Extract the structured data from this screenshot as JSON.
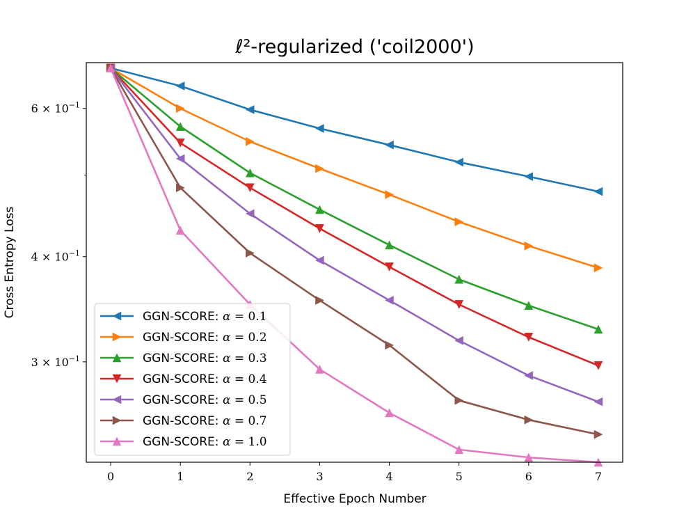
{
  "chart_data": {
    "type": "line",
    "title": "ℓ²-regularized ('coil2000')",
    "xlabel": "Effective Epoch Number",
    "ylabel": "Cross Entropy Loss",
    "yscale": "log",
    "xlim": [
      -0.35,
      7.35
    ],
    "ylim": [
      0.228,
      0.68
    ],
    "xticks": [
      0,
      1,
      2,
      3,
      4,
      5,
      6,
      7
    ],
    "yticks": [
      {
        "value": 0.6,
        "mantissa": "6",
        "exponent": "−1"
      },
      {
        "value": 0.4,
        "mantissa": "4",
        "exponent": "−1"
      },
      {
        "value": 0.3,
        "mantissa": "3",
        "exponent": "−1"
      }
    ],
    "minor_yticks": [
      0.5
    ],
    "grid": false,
    "legend_location": "lower-left",
    "x": [
      0,
      1,
      2,
      3,
      4,
      5,
      6,
      7
    ],
    "series": [
      {
        "name": "GGN-SCORE: α = 0.1",
        "color": "#1f77b4",
        "marker": "triangle-left",
        "values": [
          0.67,
          0.638,
          0.598,
          0.568,
          0.543,
          0.518,
          0.498,
          0.478
        ]
      },
      {
        "name": "GGN-SCORE: α = 0.2",
        "color": "#ff7f0e",
        "marker": "triangle-right",
        "values": [
          0.67,
          0.6,
          0.548,
          0.509,
          0.474,
          0.44,
          0.412,
          0.388
        ]
      },
      {
        "name": "GGN-SCORE: α = 0.3",
        "color": "#2ca02c",
        "marker": "triangle-up",
        "values": [
          0.67,
          0.571,
          0.503,
          0.455,
          0.413,
          0.376,
          0.35,
          0.328
        ]
      },
      {
        "name": "GGN-SCORE: α = 0.4",
        "color": "#d62728",
        "marker": "triangle-down",
        "values": [
          0.67,
          0.546,
          0.483,
          0.432,
          0.389,
          0.351,
          0.321,
          0.297
        ]
      },
      {
        "name": "GGN-SCORE: α = 0.5",
        "color": "#9467bd",
        "marker": "triangle-left",
        "values": [
          0.67,
          0.523,
          0.45,
          0.396,
          0.355,
          0.318,
          0.289,
          0.269
        ]
      },
      {
        "name": "GGN-SCORE: α = 0.7",
        "color": "#8c564b",
        "marker": "triangle-right",
        "values": [
          0.67,
          0.483,
          0.404,
          0.355,
          0.314,
          0.27,
          0.256,
          0.246
        ]
      },
      {
        "name": "GGN-SCORE: α = 1.0",
        "color": "#e377c2",
        "marker": "triangle-up",
        "values": [
          0.67,
          0.43,
          0.351,
          0.294,
          0.261,
          0.236,
          0.231,
          0.228
        ]
      }
    ],
    "legend_labels": [
      {
        "text": "GGN-SCORE: ",
        "alpha": "α",
        "eq": " = 0.1"
      },
      {
        "text": "GGN-SCORE: ",
        "alpha": "α",
        "eq": " = 0.2"
      },
      {
        "text": "GGN-SCORE: ",
        "alpha": "α",
        "eq": " = 0.3"
      },
      {
        "text": "GGN-SCORE: ",
        "alpha": "α",
        "eq": " = 0.4"
      },
      {
        "text": "GGN-SCORE: ",
        "alpha": "α",
        "eq": " = 0.5"
      },
      {
        "text": "GGN-SCORE: ",
        "alpha": "α",
        "eq": " = 0.7"
      },
      {
        "text": "GGN-SCORE: ",
        "alpha": "α",
        "eq": " = 1.0"
      }
    ]
  }
}
